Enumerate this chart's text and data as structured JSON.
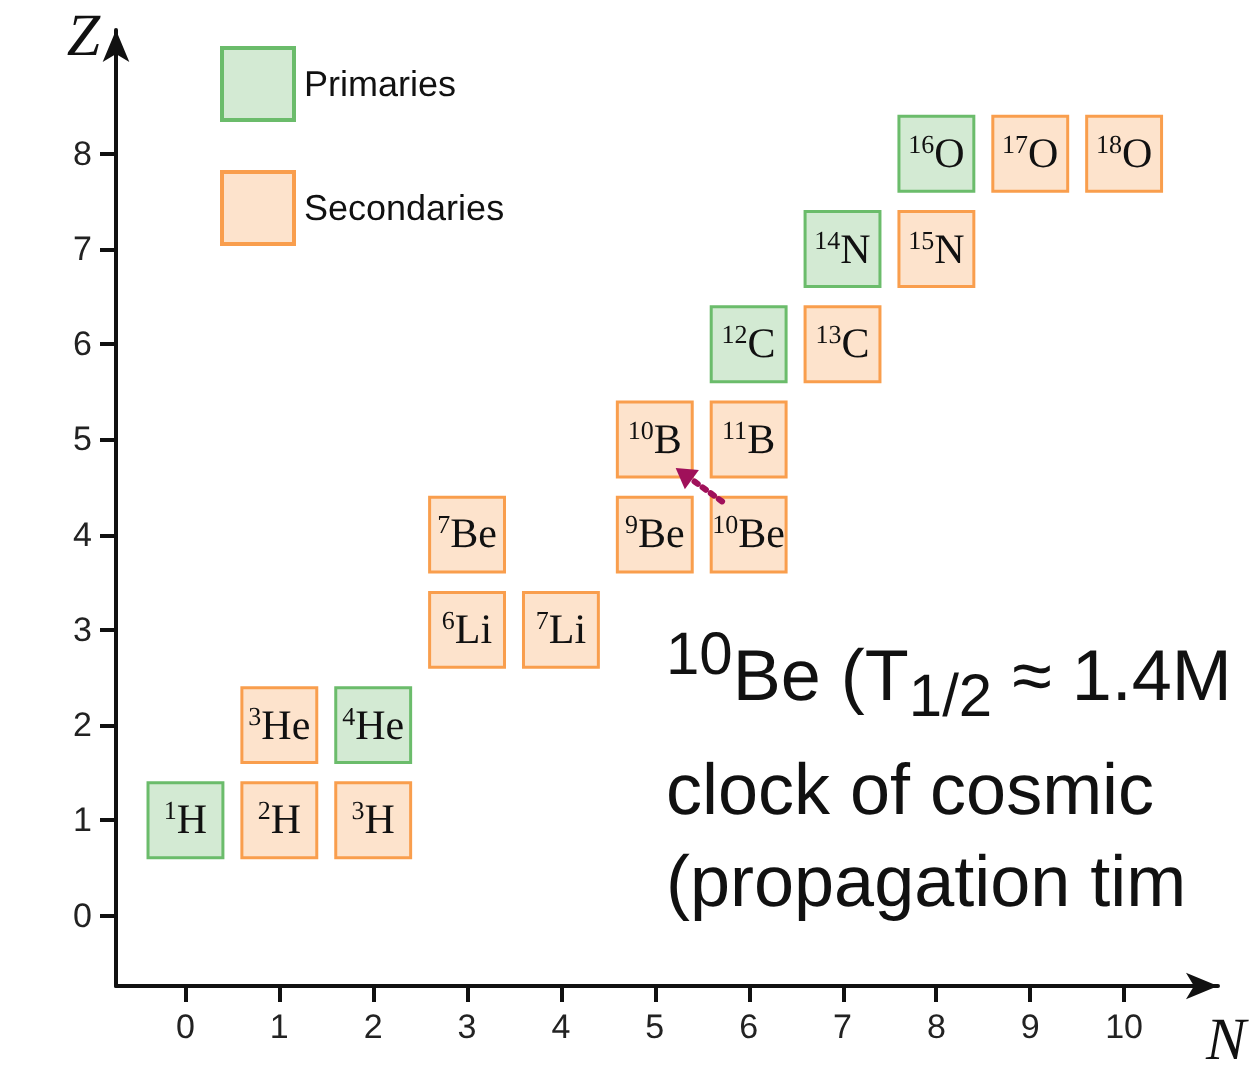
{
  "chart_data": {
    "type": "scatter",
    "xlabel": "N",
    "ylabel": "Z",
    "xlim": [
      -0.74,
      11
    ],
    "ylim": [
      -0.74,
      9.3
    ],
    "xticks": [
      0,
      1,
      2,
      3,
      4,
      5,
      6,
      7,
      8,
      9,
      10
    ],
    "yticks": [
      0,
      1,
      2,
      3,
      4,
      5,
      6,
      7,
      8
    ],
    "grid": false,
    "legend": "top left",
    "marker": "square",
    "series": [
      {
        "name": "Primaries",
        "color": "#d3ead3",
        "x": [
          0,
          2,
          6,
          7,
          8
        ],
        "values": [
          1,
          2,
          6,
          7,
          8
        ]
      },
      {
        "name": "Secondaries",
        "color": "#fde3cc",
        "x": [
          1,
          2,
          1,
          3,
          4,
          3,
          5,
          6,
          5,
          6,
          7,
          8,
          9,
          10
        ],
        "values": [
          1,
          1,
          2,
          3,
          3,
          4,
          4,
          4,
          5,
          5,
          6,
          7,
          8,
          8
        ]
      }
    ],
    "annotations": [
      {
        "text": "$^{1}$H",
        "x": 0,
        "y": 1
      },
      {
        "text": "$^{2}$H",
        "x": 1,
        "y": 1
      },
      {
        "text": "$^{3}$H",
        "x": 2,
        "y": 1
      },
      {
        "text": "$^{3}$He",
        "x": 1,
        "y": 2
      },
      {
        "text": "$^{4}$He",
        "x": 2,
        "y": 2
      },
      {
        "text": "$^{6}$Li",
        "x": 3,
        "y": 3
      },
      {
        "text": "$^{7}$Li",
        "x": 4,
        "y": 3
      },
      {
        "text": "$^{7}$Be",
        "x": 3,
        "y": 4
      },
      {
        "text": "$^{9}$Be",
        "x": 5,
        "y": 4
      },
      {
        "text": "$^{10}$Be",
        "x": 6,
        "y": 4
      },
      {
        "text": "$^{10}$B",
        "x": 5,
        "y": 5
      },
      {
        "text": "$^{11}$B",
        "x": 6,
        "y": 5
      },
      {
        "text": "$^{12}$C",
        "x": 6,
        "y": 6
      },
      {
        "text": "$^{13}$C",
        "x": 7,
        "y": 6
      },
      {
        "text": "$^{14}$N",
        "x": 7,
        "y": 7
      },
      {
        "text": "$^{15}$N",
        "x": 8,
        "y": 7
      },
      {
        "text": "$^{16}$O",
        "x": 8,
        "y": 8
      },
      {
        "text": "$^{17}$O",
        "x": 9,
        "y": 8
      },
      {
        "text": "$^{18}$O",
        "x": 10,
        "y": 8
      },
      "$^{10}$Be (T$_{1/2}$ ≈ 1.4M",
      "clock of cosmic",
      "(propagation tim"
    ]
  }
}
